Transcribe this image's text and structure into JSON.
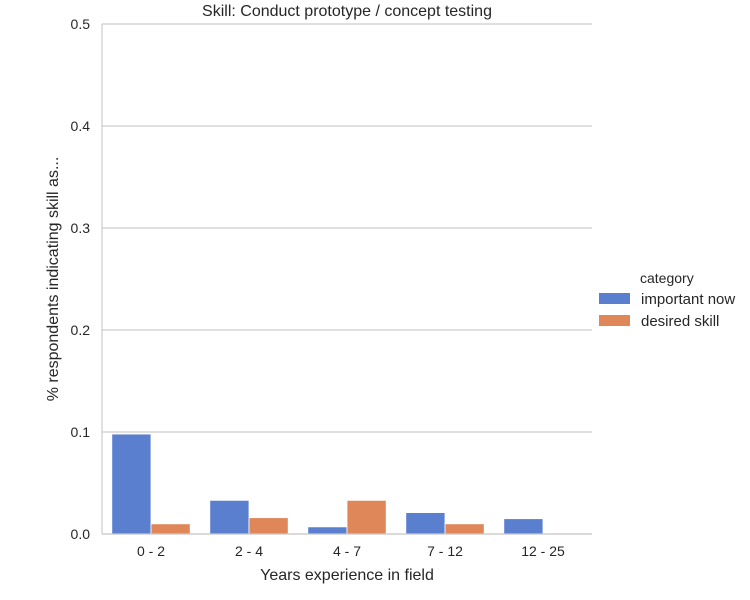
{
  "chart_data": {
    "type": "bar",
    "title": "Skill: Conduct prototype / concept testing",
    "xlabel": "Years experience in field",
    "ylabel": "% respondents indicating skill as...",
    "categories": [
      "0 - 2",
      "2 - 4",
      "4 - 7",
      "7 - 12",
      "12 - 25"
    ],
    "series": [
      {
        "name": "important now",
        "values": [
          0.098,
          0.033,
          0.007,
          0.021,
          0.015
        ],
        "color": "#5a7fcf"
      },
      {
        "name": "desired skill",
        "values": [
          0.01,
          0.016,
          0.033,
          0.01,
          0.0
        ],
        "color": "#e0875a"
      }
    ],
    "ylim": [
      0,
      0.5
    ],
    "yticks": [
      0.0,
      0.1,
      0.2,
      0.3,
      0.4,
      0.5
    ],
    "ytick_labels": [
      "0.0",
      "0.1",
      "0.2",
      "0.3",
      "0.4",
      "0.5"
    ],
    "grid": "horizontal",
    "legend": {
      "title": "category",
      "placement": "right"
    }
  }
}
